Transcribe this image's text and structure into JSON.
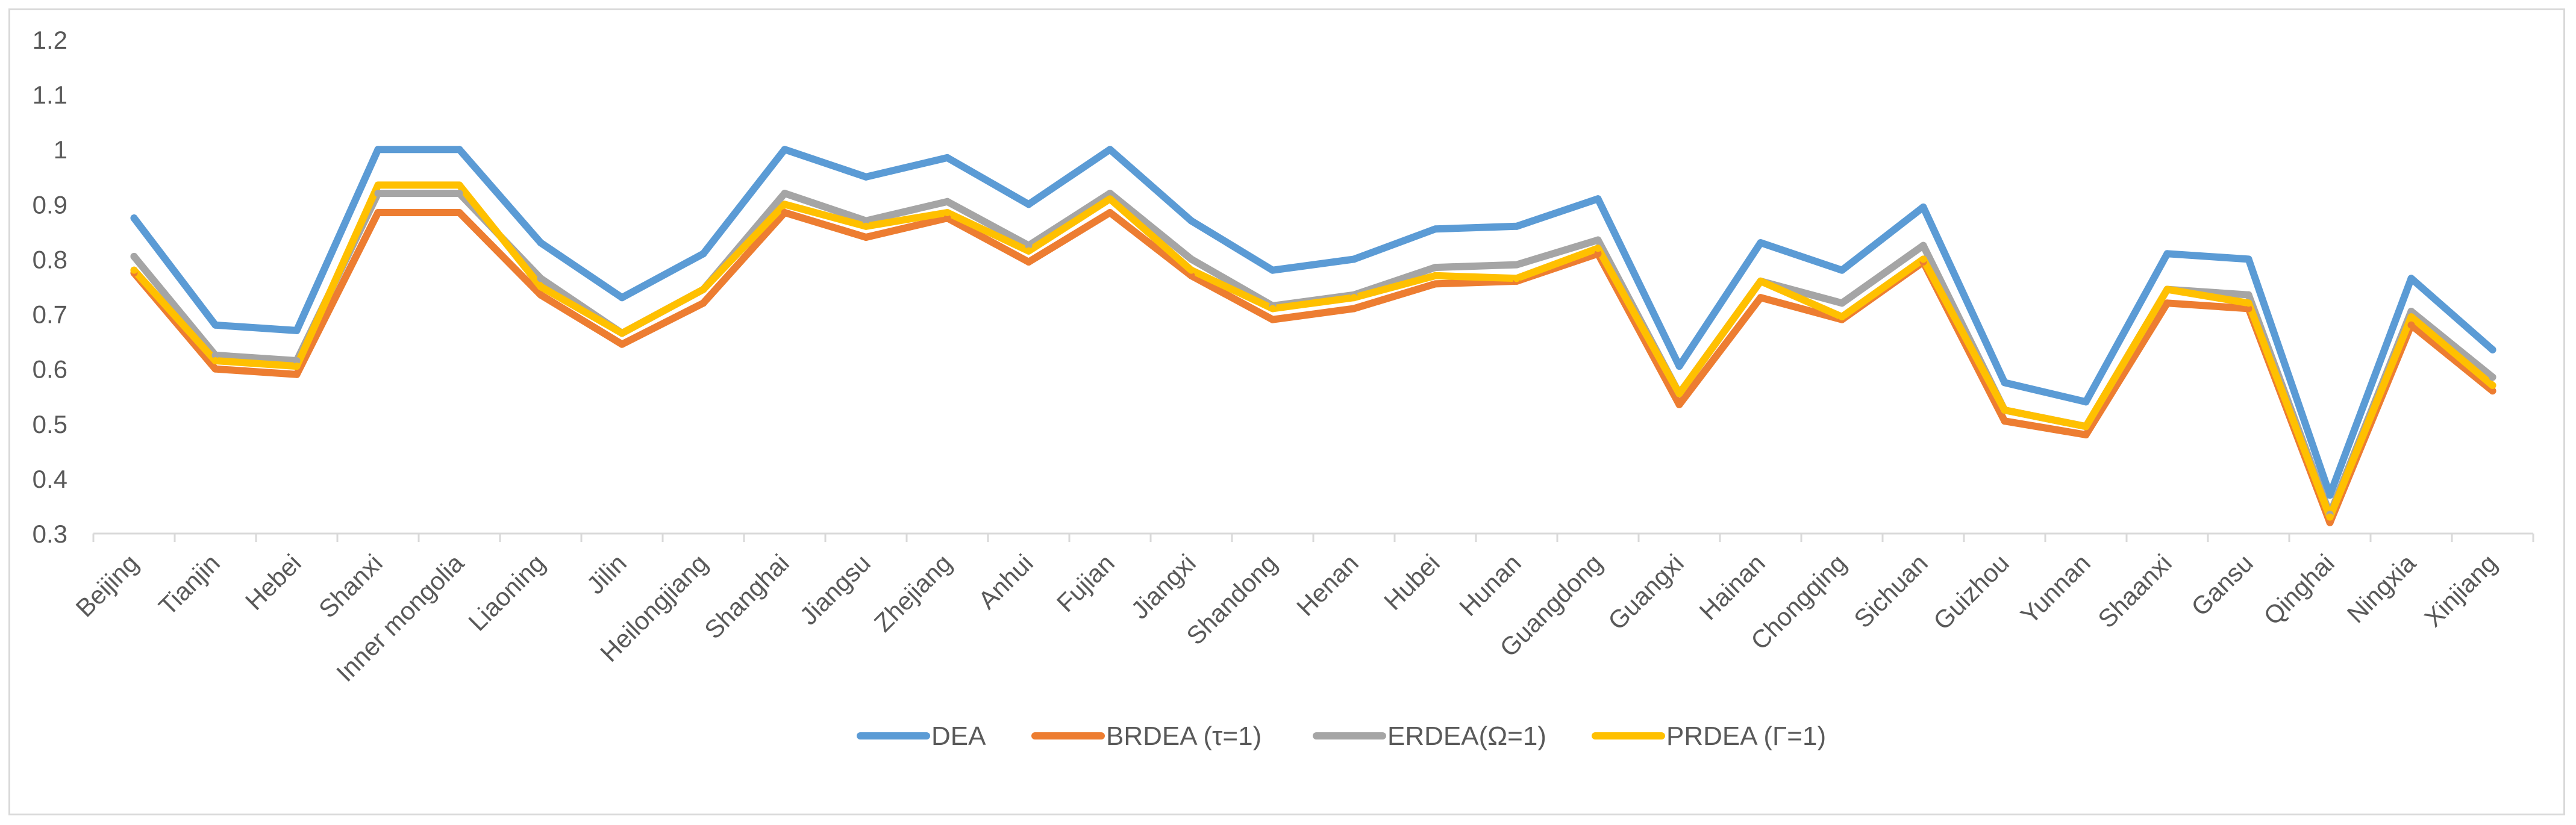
{
  "chart_data": {
    "type": "line",
    "title": "",
    "xlabel": "",
    "ylabel": "",
    "ylim": [
      0.3,
      1.2
    ],
    "yticks": [
      0.3,
      0.4,
      0.5,
      0.6,
      0.7,
      0.8,
      0.9,
      1,
      1.1,
      1.2
    ],
    "ytick_labels": [
      "0.3",
      "0.4",
      "0.5",
      "0.6",
      "0.7",
      "0.8",
      "0.9",
      "1",
      "1.1",
      "1.2"
    ],
    "grid": false,
    "legend_position": "bottom",
    "categories": [
      "Beijing",
      "Tianjin",
      "Hebei",
      "Shanxi",
      "Inner mongolia",
      "Liaoning",
      "Jilin",
      "Heilongjiang",
      "Shanghai",
      "Jiangsu",
      "Zhejiang",
      "Anhui",
      "Fujian",
      "Jiangxi",
      "Shandong",
      "Henan",
      "Hubei",
      "Hunan",
      "Guangdong",
      "Guangxi",
      "Hainan",
      "Chongqing",
      "Sichuan",
      "Guizhou",
      "Yunnan",
      "Shaanxi",
      "Gansu",
      "Qinghai",
      "Ningxia",
      "Xinjiang"
    ],
    "series": [
      {
        "name": "DEA",
        "color": "#5b9bd5",
        "values": [
          0.875,
          0.68,
          0.67,
          1.0,
          1.0,
          0.83,
          0.73,
          0.81,
          1.0,
          0.95,
          0.985,
          0.9,
          1.0,
          0.87,
          0.78,
          0.8,
          0.855,
          0.86,
          0.91,
          0.605,
          0.83,
          0.78,
          0.895,
          0.575,
          0.54,
          0.81,
          0.8,
          0.37,
          0.765,
          0.635
        ]
      },
      {
        "name": "BRDEA (τ=1)",
        "color": "#ed7d31",
        "values": [
          0.775,
          0.6,
          0.59,
          0.885,
          0.885,
          0.735,
          0.645,
          0.72,
          0.885,
          0.84,
          0.875,
          0.795,
          0.885,
          0.77,
          0.69,
          0.71,
          0.755,
          0.76,
          0.81,
          0.535,
          0.73,
          0.69,
          0.795,
          0.505,
          0.48,
          0.72,
          0.71,
          0.32,
          0.68,
          0.56
        ]
      },
      {
        "name": "ERDEA(Ω=1)",
        "color": "#a5a5a5",
        "values": [
          0.805,
          0.625,
          0.615,
          0.92,
          0.92,
          0.765,
          0.665,
          0.745,
          0.92,
          0.87,
          0.905,
          0.825,
          0.92,
          0.8,
          0.715,
          0.735,
          0.785,
          0.79,
          0.835,
          0.555,
          0.76,
          0.72,
          0.825,
          0.525,
          0.495,
          0.745,
          0.735,
          0.335,
          0.705,
          0.585
        ]
      },
      {
        "name": "PRDEA (Γ=1)",
        "color": "#ffc000",
        "values": [
          0.78,
          0.615,
          0.605,
          0.935,
          0.935,
          0.75,
          0.665,
          0.745,
          0.9,
          0.86,
          0.885,
          0.815,
          0.91,
          0.78,
          0.71,
          0.73,
          0.77,
          0.765,
          0.82,
          0.555,
          0.76,
          0.695,
          0.8,
          0.525,
          0.495,
          0.745,
          0.72,
          0.33,
          0.695,
          0.57
        ]
      }
    ]
  }
}
